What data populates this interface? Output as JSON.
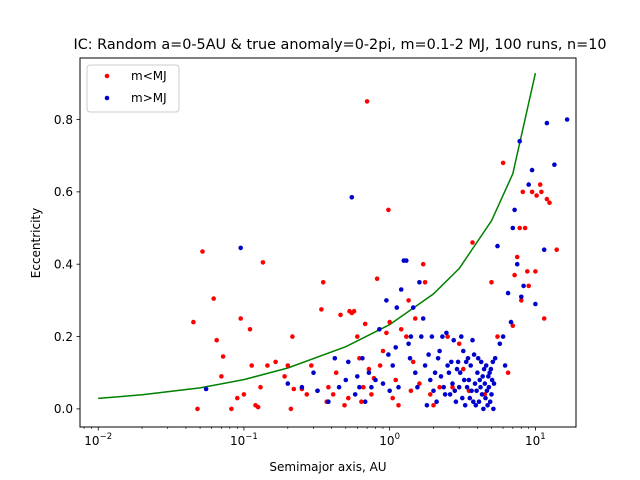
{
  "chart_data": {
    "type": "scatter",
    "title": "IC: Random a=0-5AU & true anomaly=0-2pi, m=0.1-2 MJ, 100 runs, n=10",
    "xlabel": "Semimajor axis, AU",
    "ylabel": "Eccentricity",
    "x_scale": "log",
    "xlim": [
      0.0075,
      19
    ],
    "ylim": [
      -0.05,
      0.97
    ],
    "x_ticks": [
      {
        "value": 0.01,
        "base": "10",
        "exp": "−2"
      },
      {
        "value": 0.1,
        "base": "10",
        "exp": "−1"
      },
      {
        "value": 1,
        "base": "10",
        "exp": "0"
      },
      {
        "value": 10,
        "base": "10",
        "exp": "1"
      }
    ],
    "y_ticks": [
      {
        "value": 0.0,
        "label": "0.0"
      },
      {
        "value": 0.2,
        "label": "0.2"
      },
      {
        "value": 0.4,
        "label": "0.4"
      },
      {
        "value": 0.6,
        "label": "0.6"
      },
      {
        "value": 0.8,
        "label": "0.8"
      }
    ],
    "grid": false,
    "legend_position": "top-left",
    "line": {
      "color": "#008000",
      "points": [
        [
          0.01,
          0.029
        ],
        [
          0.02,
          0.039
        ],
        [
          0.05,
          0.058
        ],
        [
          0.1,
          0.081
        ],
        [
          0.2,
          0.113
        ],
        [
          0.5,
          0.172
        ],
        [
          1,
          0.233
        ],
        [
          2,
          0.318
        ],
        [
          3,
          0.388
        ],
        [
          5,
          0.52
        ],
        [
          7,
          0.65
        ],
        [
          10,
          0.928
        ]
      ]
    },
    "series": [
      {
        "name": "m<MJ",
        "color": "#ff0000",
        "points": [
          [
            0.045,
            0.24
          ],
          [
            0.048,
            0.0
          ],
          [
            0.052,
            0.435
          ],
          [
            0.062,
            0.305
          ],
          [
            0.065,
            0.19
          ],
          [
            0.07,
            0.09
          ],
          [
            0.072,
            0.145
          ],
          [
            0.082,
            0.0
          ],
          [
            0.09,
            0.03
          ],
          [
            0.095,
            0.25
          ],
          [
            0.1,
            0.04
          ],
          [
            0.11,
            0.22
          ],
          [
            0.113,
            0.12
          ],
          [
            0.12,
            0.01
          ],
          [
            0.125,
            0.005
          ],
          [
            0.13,
            0.06
          ],
          [
            0.135,
            0.405
          ],
          [
            0.145,
            0.12
          ],
          [
            0.165,
            0.13
          ],
          [
            0.19,
            0.09
          ],
          [
            0.2,
            0.12
          ],
          [
            0.21,
            0.0
          ],
          [
            0.215,
            0.2
          ],
          [
            0.22,
            0.055
          ],
          [
            0.25,
            0.055
          ],
          [
            0.27,
            0.04
          ],
          [
            0.29,
            0.12
          ],
          [
            0.32,
            0.05
          ],
          [
            0.34,
            0.275
          ],
          [
            0.35,
            0.35
          ],
          [
            0.37,
            0.02
          ],
          [
            0.38,
            0.06
          ],
          [
            0.41,
            0.04
          ],
          [
            0.43,
            0.1
          ],
          [
            0.46,
            0.26
          ],
          [
            0.49,
            0.01
          ],
          [
            0.52,
            0.03
          ],
          [
            0.53,
            0.27
          ],
          [
            0.55,
            0.265
          ],
          [
            0.57,
            0.27
          ],
          [
            0.6,
            0.2
          ],
          [
            0.62,
            0.14
          ],
          [
            0.64,
            0.02
          ],
          [
            0.66,
            0.06
          ],
          [
            0.68,
            0.235
          ],
          [
            0.7,
            0.85
          ],
          [
            0.72,
            0.11
          ],
          [
            0.75,
            0.04
          ],
          [
            0.78,
            0.085
          ],
          [
            0.82,
            0.36
          ],
          [
            0.86,
            0.12
          ],
          [
            0.9,
            0.16
          ],
          [
            0.95,
            0.21
          ],
          [
            0.98,
            0.55
          ],
          [
            1.0,
            0.24
          ],
          [
            1.05,
            0.03
          ],
          [
            1.1,
            0.08
          ],
          [
            1.15,
            0.01
          ],
          [
            1.2,
            0.22
          ],
          [
            1.3,
            0.2
          ],
          [
            1.35,
            0.3
          ],
          [
            1.4,
            0.05
          ],
          [
            1.45,
            0.13
          ],
          [
            1.5,
            0.25
          ],
          [
            1.6,
            0.07
          ],
          [
            1.7,
            0.4
          ],
          [
            1.75,
            0.35
          ],
          [
            1.9,
            0.04
          ],
          [
            2.0,
            0.01
          ],
          [
            2.2,
            0.06
          ],
          [
            2.5,
            0.2
          ],
          [
            2.7,
            0.06
          ],
          [
            3.0,
            0.18
          ],
          [
            3.2,
            0.11
          ],
          [
            3.5,
            0.05
          ],
          [
            3.7,
            0.46
          ],
          [
            4.5,
            0.04
          ],
          [
            5.0,
            0.35
          ],
          [
            5.5,
            0.2
          ],
          [
            6.0,
            0.68
          ],
          [
            6.5,
            0.1
          ],
          [
            7.0,
            0.23
          ],
          [
            7.2,
            0.37
          ],
          [
            7.5,
            0.42
          ],
          [
            7.8,
            0.5
          ],
          [
            8.0,
            0.3
          ],
          [
            8.2,
            0.6
          ],
          [
            8.5,
            0.5
          ],
          [
            8.8,
            0.38
          ],
          [
            9.0,
            0.34
          ],
          [
            9.5,
            0.6
          ],
          [
            10.0,
            0.38
          ],
          [
            10.2,
            0.59
          ],
          [
            10.8,
            0.62
          ],
          [
            11.0,
            0.6
          ],
          [
            11.5,
            0.25
          ],
          [
            12.0,
            0.58
          ],
          [
            12.5,
            0.57
          ],
          [
            14.0,
            0.44
          ]
        ]
      },
      {
        "name": "m>MJ",
        "color": "#0000cc",
        "points": [
          [
            0.055,
            0.055
          ],
          [
            0.095,
            0.445
          ],
          [
            0.2,
            0.07
          ],
          [
            0.25,
            0.06
          ],
          [
            0.3,
            0.1
          ],
          [
            0.32,
            0.05
          ],
          [
            0.38,
            0.02
          ],
          [
            0.42,
            0.14
          ],
          [
            0.45,
            0.06
          ],
          [
            0.5,
            0.08
          ],
          [
            0.52,
            0.13
          ],
          [
            0.55,
            0.585
          ],
          [
            0.58,
            0.04
          ],
          [
            0.6,
            0.09
          ],
          [
            0.62,
            0.06
          ],
          [
            0.65,
            0.14
          ],
          [
            0.68,
            0.02
          ],
          [
            0.72,
            0.1
          ],
          [
            0.75,
            0.06
          ],
          [
            0.8,
            0.08
          ],
          [
            0.85,
            0.22
          ],
          [
            0.9,
            0.07
          ],
          [
            0.95,
            0.3
          ],
          [
            0.98,
            0.15
          ],
          [
            1.0,
            0.05
          ],
          [
            1.05,
            0.12
          ],
          [
            1.1,
            0.17
          ],
          [
            1.12,
            0.28
          ],
          [
            1.15,
            0.06
          ],
          [
            1.2,
            0.33
          ],
          [
            1.25,
            0.41
          ],
          [
            1.3,
            0.41
          ],
          [
            1.35,
            0.18
          ],
          [
            1.38,
            0.14
          ],
          [
            1.4,
            0.2
          ],
          [
            1.45,
            0.28
          ],
          [
            1.5,
            0.1
          ],
          [
            1.55,
            0.06
          ],
          [
            1.6,
            0.35
          ],
          [
            1.65,
            0.2
          ],
          [
            1.7,
            0.25
          ],
          [
            1.75,
            0.12
          ],
          [
            1.8,
            0.01
          ],
          [
            1.85,
            0.15
          ],
          [
            1.9,
            0.08
          ],
          [
            1.95,
            0.2
          ],
          [
            2.0,
            0.05
          ],
          [
            2.05,
            0.1
          ],
          [
            2.1,
            0.02
          ],
          [
            2.15,
            0.14
          ],
          [
            2.2,
            0.16
          ],
          [
            2.25,
            0.09
          ],
          [
            2.3,
            0.2
          ],
          [
            2.35,
            0.06
          ],
          [
            2.4,
            0.04
          ],
          [
            2.45,
            0.21
          ],
          [
            2.5,
            0.12
          ],
          [
            2.55,
            0.1
          ],
          [
            2.6,
            0.04
          ],
          [
            2.65,
            0.13
          ],
          [
            2.7,
            0.07
          ],
          [
            2.75,
            0.19
          ],
          [
            2.8,
            0.05
          ],
          [
            2.85,
            0.02
          ],
          [
            2.9,
            0.11
          ],
          [
            2.95,
            0.13
          ],
          [
            3.0,
            0.06
          ],
          [
            3.05,
            0.1
          ],
          [
            3.1,
            0.2
          ],
          [
            3.15,
            0.03
          ],
          [
            3.2,
            0.16
          ],
          [
            3.25,
            0.08
          ],
          [
            3.3,
            0.01
          ],
          [
            3.35,
            0.13
          ],
          [
            3.4,
            0.06
          ],
          [
            3.45,
            0.14
          ],
          [
            3.5,
            0.08
          ],
          [
            3.55,
            0.03
          ],
          [
            3.6,
            0.12
          ],
          [
            3.65,
            0.05
          ],
          [
            3.7,
            0.19
          ],
          [
            3.75,
            0.02
          ],
          [
            3.8,
            0.15
          ],
          [
            3.85,
            0.07
          ],
          [
            3.9,
            0.01
          ],
          [
            3.95,
            0.05
          ],
          [
            4.0,
            0.1
          ],
          [
            4.05,
            0.14
          ],
          [
            4.1,
            0.02
          ],
          [
            4.15,
            0.08
          ],
          [
            4.2,
            0.06
          ],
          [
            4.25,
            0.13
          ],
          [
            4.3,
            0.04
          ],
          [
            4.35,
            0.09
          ],
          [
            4.4,
            0.0
          ],
          [
            4.45,
            0.11
          ],
          [
            4.5,
            0.07
          ],
          [
            4.55,
            0.03
          ],
          [
            4.6,
            0.12
          ],
          [
            4.65,
            0.05
          ],
          [
            4.7,
            0.01
          ],
          [
            4.75,
            0.09
          ],
          [
            4.8,
            0.06
          ],
          [
            4.85,
            0.1
          ],
          [
            4.9,
            0.02
          ],
          [
            4.95,
            0.11
          ],
          [
            5.0,
            0.04
          ],
          [
            5.05,
            0.08
          ],
          [
            5.1,
            0.13
          ],
          [
            5.15,
            0.0
          ],
          [
            5.2,
            0.07
          ],
          [
            5.3,
            0.14
          ],
          [
            5.5,
            0.45
          ],
          [
            5.7,
            0.18
          ],
          [
            6.0,
            0.2
          ],
          [
            6.2,
            0.12
          ],
          [
            6.5,
            0.32
          ],
          [
            6.8,
            0.24
          ],
          [
            7.0,
            0.5
          ],
          [
            7.2,
            0.55
          ],
          [
            7.5,
            0.4
          ],
          [
            7.8,
            0.74
          ],
          [
            8.0,
            0.31
          ],
          [
            8.3,
            0.34
          ],
          [
            9.0,
            0.62
          ],
          [
            9.5,
            0.66
          ],
          [
            10.0,
            0.29
          ],
          [
            11.5,
            0.44
          ],
          [
            12.0,
            0.79
          ],
          [
            13.5,
            0.675
          ],
          [
            16.5,
            0.8
          ]
        ]
      }
    ]
  }
}
